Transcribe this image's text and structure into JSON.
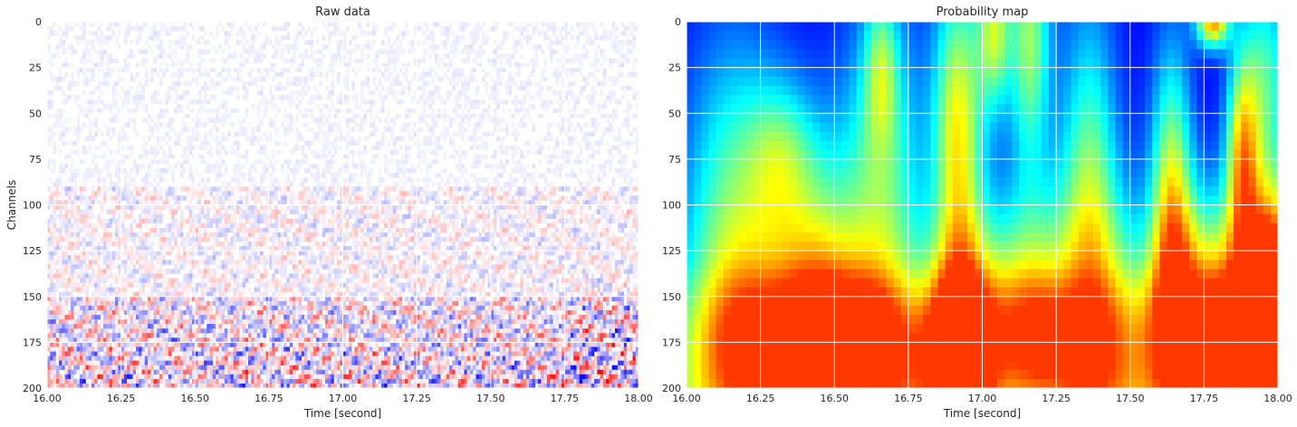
{
  "chart_data": [
    {
      "type": "heatmap",
      "title": "Raw data",
      "xlabel": "Time [second]",
      "ylabel": "Channels",
      "xlim": [
        16.0,
        18.0
      ],
      "ylim": [
        200,
        0
      ],
      "x_ticks": [
        "16.00",
        "16.25",
        "16.50",
        "16.75",
        "17.00",
        "17.25",
        "17.50",
        "17.75",
        "18.00"
      ],
      "y_ticks": [
        "0",
        "25",
        "50",
        "75",
        "100",
        "125",
        "150",
        "175",
        "200"
      ],
      "grid": true,
      "colormap": "seismic (blue-white-red)",
      "colors": {
        "negative": "#0000ff",
        "zero": "#ffffff",
        "positive": "#ff0000"
      }
    },
    {
      "type": "heatmap",
      "title": "Probability map",
      "xlabel": "Time [second]",
      "ylabel": "",
      "xlim": [
        16.0,
        18.0
      ],
      "ylim": [
        200,
        0
      ],
      "x_ticks": [
        "16.00",
        "16.25",
        "16.50",
        "16.75",
        "17.00",
        "17.25",
        "17.50",
        "17.75",
        "18.00"
      ],
      "y_ticks": [
        "0",
        "25",
        "50",
        "75",
        "100",
        "125",
        "150",
        "175",
        "200"
      ],
      "grid": true,
      "colormap": "jet",
      "colors": {
        "low": "#0000ff",
        "mid": "#00ffff",
        "high": "#ffa500"
      }
    }
  ]
}
